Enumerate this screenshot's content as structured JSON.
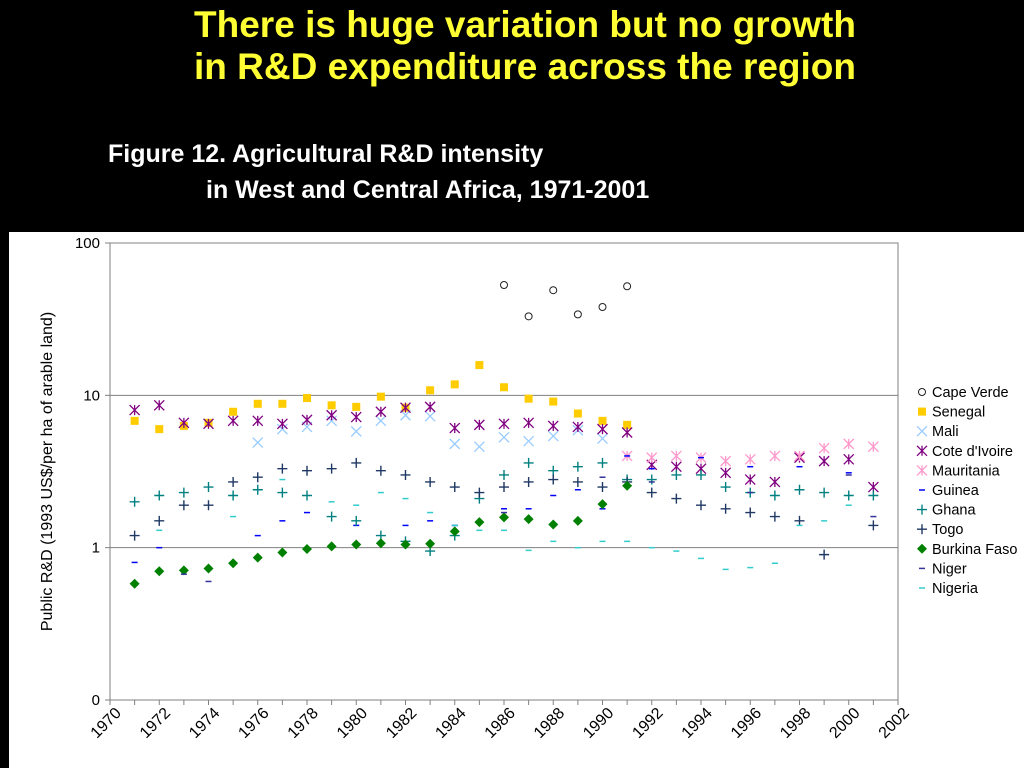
{
  "slide": {
    "headline_line1": "There is huge variation but no growth",
    "headline_line2": "in R&D expenditure across the region",
    "figure_title_line1": "Figure 12. Agricultural R&D intensity",
    "figure_title_line2": "in West and Central Africa, 1971-2001"
  },
  "colors": {
    "background": "#000000",
    "headline": "#ffff33",
    "title": "#ffffff",
    "panel": "#ffffff"
  },
  "chart_data": {
    "type": "scatter",
    "yscale": "log",
    "ylabel": "Public R&D (1993 US$/per ha of arable land)",
    "xlabel": "",
    "xlim": [
      1970,
      2002
    ],
    "xticks": [
      "1970",
      "1972",
      "1974",
      "1976",
      "1978",
      "1980",
      "1982",
      "1984",
      "1986",
      "1988",
      "1990",
      "1992",
      "1994",
      "1996",
      "1998",
      "2000",
      "2002"
    ],
    "yticks": [
      {
        "value": 0.1,
        "label": "0"
      },
      {
        "value": 1,
        "label": "1"
      },
      {
        "value": 10,
        "label": "10"
      },
      {
        "value": 100,
        "label": "100"
      }
    ],
    "grid": "horizontal",
    "legend": "right",
    "series": [
      {
        "name": "Cape Verde",
        "marker": "circle",
        "color": "#222222",
        "points": [
          [
            1986,
            53
          ],
          [
            1987,
            33
          ],
          [
            1988,
            49
          ],
          [
            1989,
            34
          ],
          [
            1990,
            38
          ],
          [
            1991,
            52
          ]
        ]
      },
      {
        "name": "Senegal",
        "marker": "square",
        "color": "#ffcc00",
        "points": [
          [
            1971,
            6.8
          ],
          [
            1972,
            6.0
          ],
          [
            1973,
            6.3
          ],
          [
            1974,
            6.6
          ],
          [
            1975,
            7.8
          ],
          [
            1976,
            8.8
          ],
          [
            1977,
            8.8
          ],
          [
            1978,
            9.6
          ],
          [
            1979,
            8.6
          ],
          [
            1980,
            8.4
          ],
          [
            1981,
            9.8
          ],
          [
            1982,
            8.3
          ],
          [
            1983,
            10.8
          ],
          [
            1984,
            11.8
          ],
          [
            1985,
            15.8
          ],
          [
            1986,
            11.3
          ],
          [
            1987,
            9.5
          ],
          [
            1988,
            9.1
          ],
          [
            1989,
            7.6
          ],
          [
            1990,
            6.8
          ],
          [
            1991,
            6.4
          ]
        ]
      },
      {
        "name": "Mali",
        "marker": "x",
        "color": "#99ccff",
        "points": [
          [
            1976,
            4.9
          ],
          [
            1977,
            6.0
          ],
          [
            1978,
            6.2
          ],
          [
            1979,
            6.8
          ],
          [
            1980,
            5.8
          ],
          [
            1981,
            6.8
          ],
          [
            1982,
            7.4
          ],
          [
            1983,
            7.3
          ],
          [
            1984,
            4.8
          ],
          [
            1985,
            4.6
          ],
          [
            1986,
            5.3
          ],
          [
            1987,
            5.0
          ],
          [
            1988,
            5.4
          ],
          [
            1989,
            5.9
          ],
          [
            1990,
            5.2
          ]
        ]
      },
      {
        "name": "Cote d'Ivoire",
        "marker": "star",
        "color": "#800080",
        "points": [
          [
            1971,
            8.0
          ],
          [
            1972,
            8.6
          ],
          [
            1973,
            6.6
          ],
          [
            1974,
            6.5
          ],
          [
            1975,
            6.8
          ],
          [
            1976,
            6.8
          ],
          [
            1977,
            6.5
          ],
          [
            1978,
            6.9
          ],
          [
            1979,
            7.4
          ],
          [
            1980,
            7.2
          ],
          [
            1981,
            7.8
          ],
          [
            1982,
            8.3
          ],
          [
            1983,
            8.4
          ],
          [
            1984,
            6.1
          ],
          [
            1985,
            6.4
          ],
          [
            1986,
            6.5
          ],
          [
            1987,
            6.6
          ],
          [
            1988,
            6.3
          ],
          [
            1989,
            6.2
          ],
          [
            1990,
            6.0
          ],
          [
            1991,
            5.7
          ],
          [
            1992,
            3.5
          ],
          [
            1993,
            3.4
          ],
          [
            1994,
            3.3
          ],
          [
            1995,
            3.1
          ],
          [
            1996,
            2.8
          ],
          [
            1997,
            2.7
          ],
          [
            1998,
            3.9
          ],
          [
            1999,
            3.7
          ],
          [
            2000,
            3.8
          ],
          [
            2001,
            2.5
          ]
        ]
      },
      {
        "name": "Mauritania",
        "marker": "star",
        "color": "#ff99cc",
        "points": [
          [
            1991,
            4.0
          ],
          [
            1992,
            3.9
          ],
          [
            1993,
            4.0
          ],
          [
            1994,
            3.9
          ],
          [
            1995,
            3.7
          ],
          [
            1996,
            3.8
          ],
          [
            1997,
            4.0
          ],
          [
            1998,
            4.0
          ],
          [
            1999,
            4.5
          ],
          [
            2000,
            4.8
          ],
          [
            2001,
            4.6
          ]
        ]
      },
      {
        "name": "Guinea",
        "marker": "dash",
        "color": "#0000ff",
        "points": [
          [
            1971,
            0.8
          ],
          [
            1972,
            1.0
          ],
          [
            1976,
            1.2
          ],
          [
            1977,
            1.5
          ],
          [
            1978,
            1.7
          ],
          [
            1980,
            1.4
          ],
          [
            1982,
            1.4
          ],
          [
            1983,
            1.5
          ],
          [
            1984,
            1.4
          ],
          [
            1986,
            1.8
          ],
          [
            1987,
            1.8
          ],
          [
            1988,
            2.2
          ],
          [
            1989,
            2.4
          ],
          [
            1990,
            1.8
          ],
          [
            1991,
            4.0
          ],
          [
            1992,
            3.3
          ],
          [
            1994,
            3.9
          ],
          [
            1996,
            3.4
          ],
          [
            1998,
            3.4
          ],
          [
            2000,
            3.1
          ]
        ]
      },
      {
        "name": "Ghana",
        "marker": "plus",
        "color": "#008080",
        "points": [
          [
            1971,
            2.0
          ],
          [
            1972,
            2.2
          ],
          [
            1973,
            2.3
          ],
          [
            1974,
            2.5
          ],
          [
            1975,
            2.2
          ],
          [
            1976,
            2.4
          ],
          [
            1977,
            2.3
          ],
          [
            1978,
            2.2
          ],
          [
            1979,
            1.6
          ],
          [
            1980,
            1.5
          ],
          [
            1981,
            1.2
          ],
          [
            1982,
            1.1
          ],
          [
            1983,
            0.95
          ],
          [
            1984,
            1.2
          ],
          [
            1985,
            2.1
          ],
          [
            1986,
            3.0
          ],
          [
            1987,
            3.6
          ],
          [
            1988,
            3.2
          ],
          [
            1989,
            3.4
          ],
          [
            1990,
            3.6
          ],
          [
            1991,
            2.8
          ],
          [
            1992,
            2.8
          ],
          [
            1993,
            3.0
          ],
          [
            1994,
            3.0
          ],
          [
            1995,
            2.5
          ],
          [
            1996,
            2.3
          ],
          [
            1997,
            2.2
          ],
          [
            1998,
            2.4
          ],
          [
            1999,
            2.3
          ],
          [
            2000,
            2.2
          ],
          [
            2001,
            2.2
          ]
        ]
      },
      {
        "name": "Togo",
        "marker": "plus",
        "color": "#1f3864",
        "points": [
          [
            1971,
            1.2
          ],
          [
            1972,
            1.5
          ],
          [
            1973,
            1.9
          ],
          [
            1974,
            1.9
          ],
          [
            1975,
            2.7
          ],
          [
            1976,
            2.9
          ],
          [
            1977,
            3.3
          ],
          [
            1978,
            3.2
          ],
          [
            1979,
            3.3
          ],
          [
            1980,
            3.6
          ],
          [
            1981,
            3.2
          ],
          [
            1982,
            3.0
          ],
          [
            1983,
            2.7
          ],
          [
            1984,
            2.5
          ],
          [
            1985,
            2.3
          ],
          [
            1986,
            2.5
          ],
          [
            1987,
            2.7
          ],
          [
            1988,
            2.8
          ],
          [
            1989,
            2.7
          ],
          [
            1990,
            2.5
          ],
          [
            1991,
            2.7
          ],
          [
            1992,
            2.3
          ],
          [
            1993,
            2.1
          ],
          [
            1994,
            1.9
          ],
          [
            1995,
            1.8
          ],
          [
            1996,
            1.7
          ],
          [
            1997,
            1.6
          ],
          [
            1998,
            1.5
          ],
          [
            1999,
            0.9
          ],
          [
            2001,
            1.4
          ]
        ]
      },
      {
        "name": "Burkina Faso",
        "marker": "diamond",
        "color": "#008000",
        "points": [
          [
            1971,
            0.58
          ],
          [
            1972,
            0.7
          ],
          [
            1973,
            0.71
          ],
          [
            1974,
            0.73
          ],
          [
            1975,
            0.79
          ],
          [
            1976,
            0.86
          ],
          [
            1977,
            0.93
          ],
          [
            1978,
            0.98
          ],
          [
            1979,
            1.02
          ],
          [
            1980,
            1.05
          ],
          [
            1981,
            1.07
          ],
          [
            1982,
            1.05
          ],
          [
            1983,
            1.06
          ],
          [
            1984,
            1.28
          ],
          [
            1985,
            1.47
          ],
          [
            1986,
            1.58
          ],
          [
            1987,
            1.54
          ],
          [
            1988,
            1.42
          ],
          [
            1989,
            1.5
          ],
          [
            1990,
            1.93
          ],
          [
            1991,
            2.55
          ]
        ]
      },
      {
        "name": "Niger",
        "marker": "dash",
        "color": "#333399",
        "points": [
          [
            1973,
            0.67
          ],
          [
            1974,
            0.6
          ],
          [
            1986,
            1.7
          ],
          [
            1990,
            2.9
          ],
          [
            1992,
            2.7
          ],
          [
            1996,
            2.3
          ],
          [
            2000,
            3.0
          ],
          [
            2001,
            1.6
          ]
        ]
      },
      {
        "name": "Nigeria",
        "marker": "dash",
        "color": "#33cccc",
        "points": [
          [
            1972,
            1.3
          ],
          [
            1975,
            1.6
          ],
          [
            1977,
            2.8
          ],
          [
            1979,
            2.0
          ],
          [
            1980,
            1.9
          ],
          [
            1981,
            2.3
          ],
          [
            1982,
            2.1
          ],
          [
            1983,
            1.7
          ],
          [
            1984,
            1.4
          ],
          [
            1985,
            1.3
          ],
          [
            1986,
            1.3
          ],
          [
            1987,
            0.96
          ],
          [
            1988,
            1.1
          ],
          [
            1989,
            1.0
          ],
          [
            1990,
            1.1
          ],
          [
            1991,
            1.1
          ],
          [
            1992,
            1.0
          ],
          [
            1993,
            0.95
          ],
          [
            1994,
            0.85
          ],
          [
            1995,
            0.72
          ],
          [
            1996,
            0.74
          ],
          [
            1997,
            0.79
          ],
          [
            1998,
            1.4
          ],
          [
            1999,
            1.5
          ],
          [
            2000,
            1.9
          ]
        ]
      }
    ]
  }
}
